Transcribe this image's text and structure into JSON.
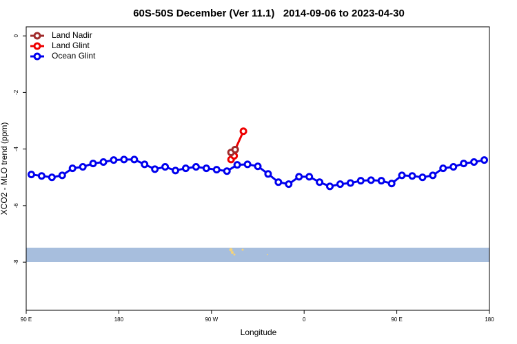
{
  "chart_data": {
    "type": "line",
    "title": "60S-50S December (Ver 11.1)   2014-09-06 to 2023-04-30",
    "x_label": "Longitude",
    "y_label": "XCO2 - MLO trend (ppm)",
    "xlim": [
      90,
      540
    ],
    "ylim": [
      -9.7,
      0.32
    ],
    "xticks": [
      {
        "value": 90,
        "label": "90 E"
      },
      {
        "value": 180,
        "label": "180"
      },
      {
        "value": 270,
        "label": "90 W"
      },
      {
        "value": 360,
        "label": "0"
      },
      {
        "value": 450,
        "label": "90 E"
      },
      {
        "value": 540,
        "label": "180"
      }
    ],
    "yticks": [
      0,
      -2,
      -4,
      -6,
      -8
    ],
    "legend": "top-left",
    "series": [
      {
        "name": "Land Nadir",
        "color": "#a02c2c",
        "x": [
          289,
          293
        ],
        "values": [
          -4.12,
          -4.02
        ]
      },
      {
        "name": "Land Glint",
        "color": "#ee0000",
        "x": [
          289,
          292,
          293,
          301
        ],
        "values": [
          -4.37,
          -4.24,
          -4.02,
          -3.37
        ]
      },
      {
        "name": "Ocean Glint",
        "color": "#0000ee",
        "x": [
          95,
          105,
          115,
          125,
          135,
          145,
          155,
          165,
          175,
          185,
          195,
          205,
          215,
          225,
          235,
          245,
          255,
          265,
          275,
          285,
          295,
          305,
          315,
          325,
          335,
          345,
          355,
          365,
          375,
          385,
          395,
          405,
          415,
          425,
          435,
          445,
          455,
          465,
          475,
          485,
          495,
          505,
          515,
          525,
          535
        ],
        "values": [
          -4.9,
          -4.95,
          -5.0,
          -4.93,
          -4.68,
          -4.63,
          -4.51,
          -4.46,
          -4.39,
          -4.37,
          -4.37,
          -4.54,
          -4.71,
          -4.63,
          -4.76,
          -4.68,
          -4.63,
          -4.68,
          -4.73,
          -4.78,
          -4.56,
          -4.54,
          -4.61,
          -4.88,
          -5.17,
          -5.24,
          -4.98,
          -4.98,
          -5.17,
          -5.32,
          -5.24,
          -5.2,
          -5.12,
          -5.1,
          -5.12,
          -5.22,
          -4.93,
          -4.95,
          -5.0,
          -4.93,
          -4.68,
          -4.63,
          -4.51,
          -4.46,
          -4.39
        ]
      }
    ]
  }
}
